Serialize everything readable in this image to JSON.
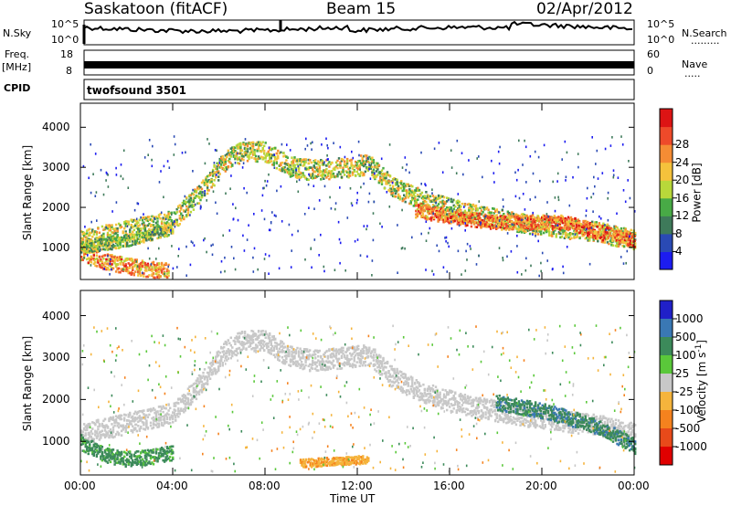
{
  "header": {
    "station": "Saskatoon (fitACF)",
    "beam": "Beam 15",
    "date": "02/Apr/2012"
  },
  "side_labels": {
    "nsky": "N.Sky",
    "freq": "Freq.",
    "mhz": "[MHz]",
    "cpid": "CPID",
    "nsearch": "N.Search",
    "nsearch_dots": "·········",
    "nave": "Nave",
    "nave_dots": "·····"
  },
  "noise_ticks": {
    "top_left": "10^5",
    "bottom_left": "10^0",
    "top_right": "10^5",
    "bottom_right": "10^0"
  },
  "freq_ticks": {
    "left": [
      "18",
      "8"
    ],
    "right": [
      "60",
      "0"
    ]
  },
  "cpid_value": "twofsound 3501",
  "colors": {
    "line": "#000000",
    "background": "#ffffff"
  },
  "chart_data": [
    {
      "type": "heatmap",
      "title": "",
      "ylabel": "Slant Range [km]",
      "xlabel": "",
      "ylim": [
        200,
        4600
      ],
      "yticks": [
        "1000",
        "2000",
        "3000",
        "4000"
      ],
      "colorbar": {
        "label": "Power [dB]",
        "ticks": [
          "4",
          "8",
          "12",
          "16",
          "20",
          "24",
          "28"
        ],
        "colors": [
          "#1c1cf0",
          "#2a4ab4",
          "#3e7a5a",
          "#48aa46",
          "#b8d83a",
          "#f5c23c",
          "#f58c34",
          "#ee4a2a",
          "#dd1414"
        ]
      },
      "bands": [
        {
          "x": [
            0,
            2,
            4,
            5,
            6.3,
            7,
            8,
            9,
            10,
            11.5,
            12.5,
            13.5,
            15,
            17,
            19,
            21,
            22.5,
            24
          ],
          "y": [
            1200,
            1450,
            1700,
            2300,
            3200,
            3420,
            3420,
            3050,
            2950,
            3020,
            3100,
            2550,
            2150,
            1850,
            1650,
            1500,
            1400,
            1200
          ],
          "width": 250,
          "level": 16
        },
        {
          "x": [
            0,
            1,
            2,
            3,
            3.8
          ],
          "y": [
            900,
            680,
            560,
            480,
            430
          ],
          "width": 200,
          "level": 22
        },
        {
          "x": [
            14.5,
            16,
            18,
            20,
            21,
            22.5,
            24
          ],
          "y": [
            1950,
            1800,
            1650,
            1650,
            1650,
            1400,
            1200
          ],
          "width": 180,
          "level": 24
        },
        {
          "x": [
            0,
            1,
            2,
            3,
            4
          ],
          "y": [
            1050,
            1100,
            1200,
            1350,
            1500
          ],
          "width": 150,
          "level": 14
        }
      ]
    },
    {
      "type": "heatmap",
      "title": "",
      "ylabel": "Slant Range [km]",
      "xlabel": "Time UT",
      "ylim": [
        200,
        4600
      ],
      "yticks": [
        "1000",
        "2000",
        "3000",
        "4000"
      ],
      "xticks": [
        "00:00",
        "04:00",
        "08:00",
        "12:00",
        "16:00",
        "20:00",
        "00:00"
      ],
      "colorbar": {
        "label": "Velocity [m s^-1]",
        "ticks": [
          "1000",
          "500",
          "100",
          "25",
          "-25",
          "-100",
          "-500",
          "-1000"
        ],
        "colors": [
          "#2020c8",
          "#3a78b4",
          "#3c8a5a",
          "#5ac83a",
          "#c8c8c8",
          "#f5b43c",
          "#f5821e",
          "#e84a1a",
          "#e00000"
        ]
      },
      "bands": [
        {
          "x": [
            0,
            2,
            4,
            5,
            6.3,
            7,
            8,
            9,
            10,
            11.5,
            12.5,
            13.5,
            15,
            17,
            19,
            21,
            22.5,
            24
          ],
          "y": [
            1200,
            1450,
            1700,
            2300,
            3200,
            3420,
            3420,
            3050,
            2950,
            3020,
            3100,
            2550,
            2150,
            1850,
            1650,
            1500,
            1400,
            1200
          ],
          "width": 250,
          "level": 0
        },
        {
          "x": [
            18,
            20,
            21,
            22,
            23,
            24
          ],
          "y": [
            1950,
            1750,
            1600,
            1450,
            1200,
            900
          ],
          "width": 180,
          "level": 400
        },
        {
          "x": [
            0,
            1,
            2,
            3,
            4
          ],
          "y": [
            1000,
            700,
            600,
            650,
            750
          ],
          "width": 180,
          "level": 150
        },
        {
          "x": [
            9.5,
            11,
            12.5
          ],
          "y": [
            500,
            550,
            600
          ],
          "width": 100,
          "level": -80
        }
      ]
    }
  ]
}
